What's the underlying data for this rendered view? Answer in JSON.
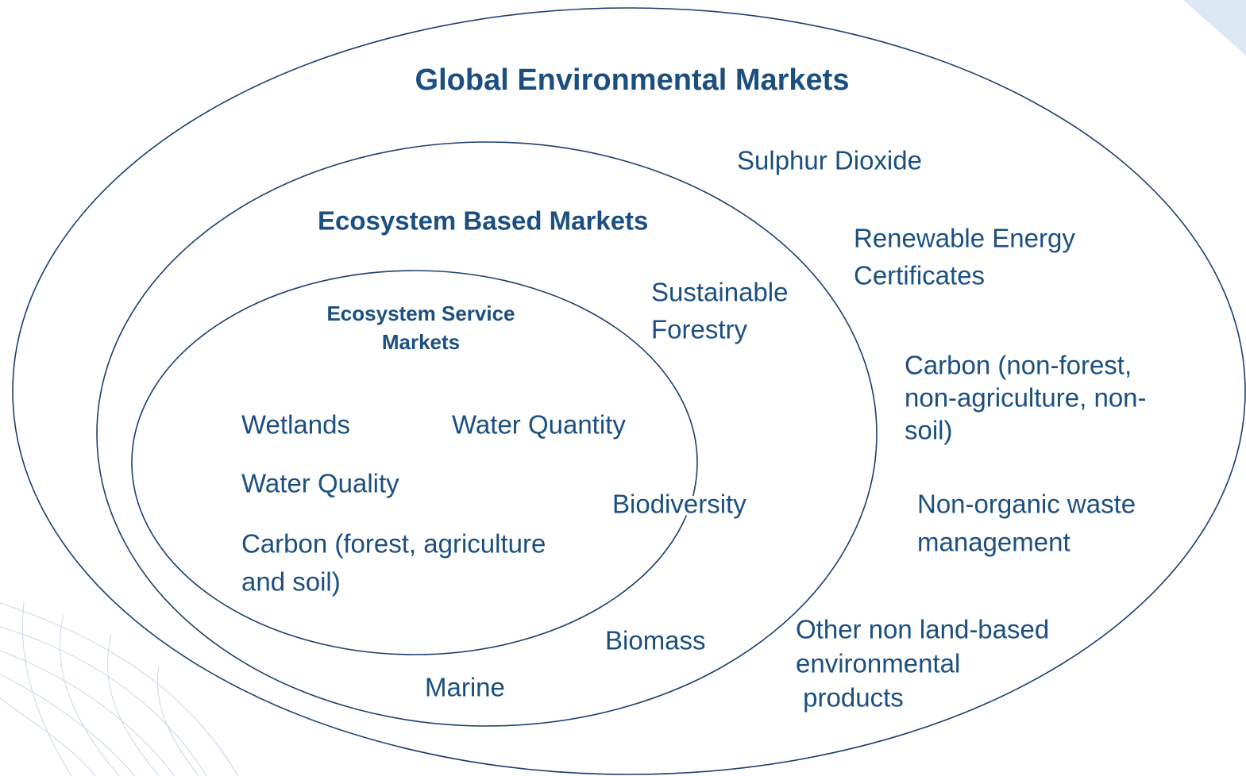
{
  "title": "Global Environmental Markets",
  "ecosystem_based": {
    "title": "Ecosystem Based Markets"
  },
  "ecosystem_service": {
    "title": [
      "Ecosystem Service",
      "Markets"
    ]
  },
  "items": [
    {
      "lines": [
        "Sulphur Dioxide"
      ]
    },
    {
      "lines": [
        "Renewable Energy",
        "Certificates"
      ]
    },
    {
      "lines": [
        "Sustainable",
        "Forestry"
      ]
    },
    {
      "lines": [
        "Carbon (non-forest,",
        "non-agriculture, non-",
        "soil)"
      ]
    },
    {
      "lines": [
        "Wetlands"
      ]
    },
    {
      "lines": [
        "Water Quantity"
      ]
    },
    {
      "lines": [
        "Water Quality"
      ]
    },
    {
      "lines": [
        "Biodiversity"
      ]
    },
    {
      "lines": [
        "Non-organic waste",
        "management"
      ]
    },
    {
      "lines": [
        "Carbon (forest, agriculture",
        "and soil)"
      ]
    },
    {
      "lines": [
        "Biomass"
      ]
    },
    {
      "lines": [
        "Other non land-based",
        "environmental",
        " products"
      ]
    },
    {
      "lines": [
        "Marine"
      ]
    }
  ]
}
